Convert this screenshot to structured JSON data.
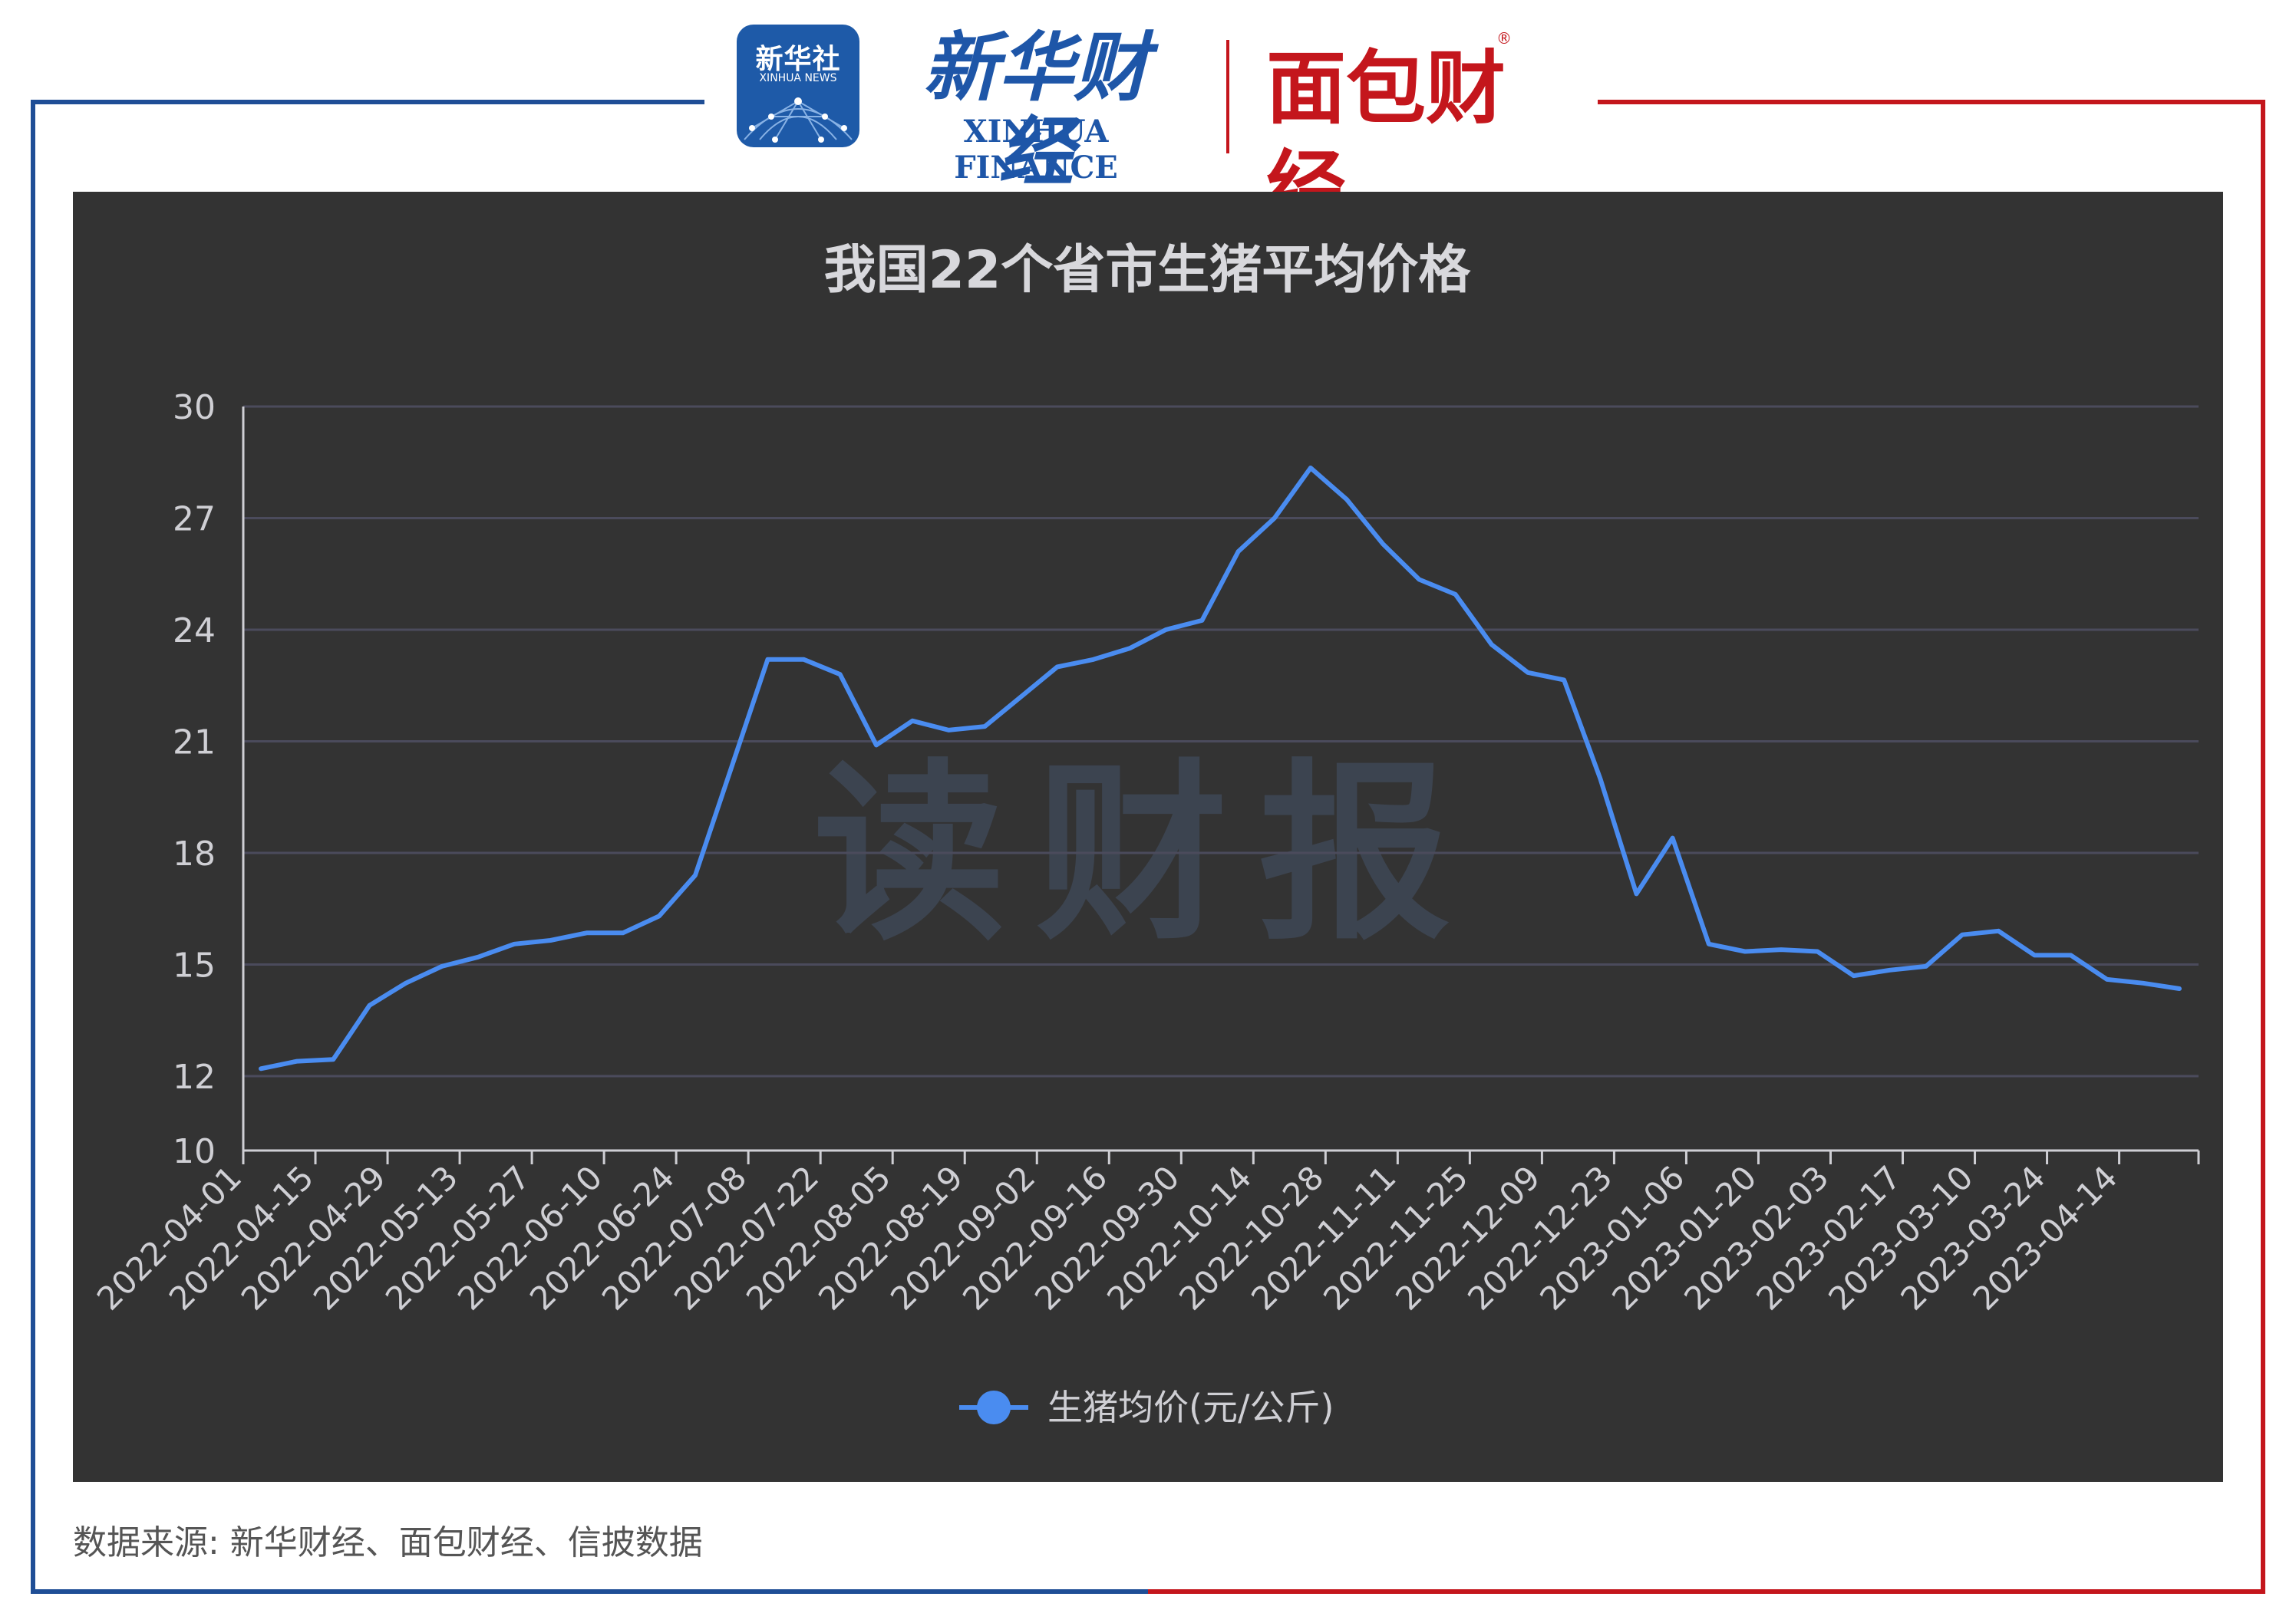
{
  "header": {
    "xinhua_news_cn": "新华社",
    "xinhua_news_en": "XINHUA NEWS",
    "xinhua_finance_cn": "新华财经",
    "xinhua_finance_en": "XINHUA FINANCE",
    "mianbao_finance_cn": "面包财经",
    "registered_mark": "®"
  },
  "watermark": "读财报",
  "source": "数据来源: 新华财经、面包财经、信披数据",
  "colors": {
    "frame_blue": "#1f4e96",
    "frame_red": "#c4161c",
    "panel_bg": "#333333",
    "line": "#4a8cf0",
    "grid": "#4b4b5c",
    "text": "#cfcfd4"
  },
  "chart_data": {
    "type": "line",
    "title": "我国22个省市生猪平均价格",
    "ylim": [
      10,
      30
    ],
    "yticks": [
      10,
      12,
      15,
      18,
      21,
      24,
      27,
      30
    ],
    "grid": true,
    "legend_position": "bottom-center",
    "x_tick_labels": [
      "2022-04-01",
      "2022-04-15",
      "2022-04-29",
      "2022-05-13",
      "2022-05-27",
      "2022-06-10",
      "2022-06-24",
      "2022-07-08",
      "2022-07-22",
      "2022-08-05",
      "2022-08-19",
      "2022-09-02",
      "2022-09-16",
      "2022-09-30",
      "2022-10-14",
      "2022-10-28",
      "2022-11-11",
      "2022-11-25",
      "2022-12-09",
      "2022-12-23",
      "2023-01-06",
      "2023-01-20",
      "2023-02-03",
      "2023-02-17",
      "2023-03-10",
      "2023-03-24",
      "2023-04-14"
    ],
    "series": [
      {
        "name": "生猪均价(元/公斤)",
        "values": [
          12.2,
          12.4,
          12.45,
          13.9,
          14.5,
          14.95,
          15.2,
          15.55,
          15.65,
          15.85,
          15.85,
          16.3,
          17.4,
          20.3,
          23.2,
          23.2,
          22.8,
          20.9,
          21.55,
          21.3,
          21.4,
          22.2,
          23.0,
          23.2,
          23.5,
          24.0,
          24.25,
          26.1,
          27.0,
          28.35,
          27.5,
          26.3,
          25.35,
          24.95,
          23.6,
          22.85,
          22.65,
          20.0,
          16.9,
          18.4,
          15.55,
          15.35,
          15.4,
          15.35,
          14.7,
          14.85,
          14.95,
          15.8,
          15.9,
          15.25,
          15.25,
          14.6,
          14.5,
          14.35
        ]
      }
    ]
  }
}
